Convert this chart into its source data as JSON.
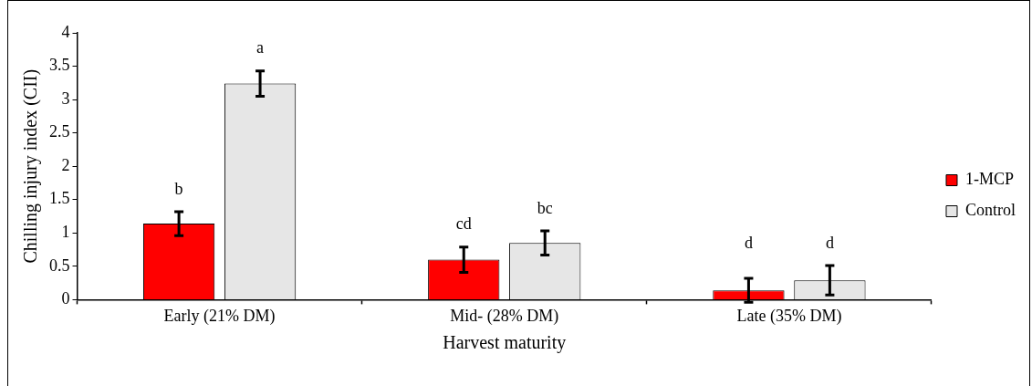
{
  "chart_data": {
    "type": "bar",
    "xlabel": "Harvest maturity",
    "ylabel": "Chilling injury index (CII)",
    "categories": [
      "Early (21% DM)",
      "Mid- (28% DM)",
      "Late (35% DM)"
    ],
    "series": [
      {
        "name": "1-MCP",
        "color": "#ff0000",
        "values": [
          1.14,
          0.6,
          0.14
        ],
        "errors": [
          0.18,
          0.19,
          0.18
        ]
      },
      {
        "name": "Control",
        "color": "#e6e6e6",
        "values": [
          3.24,
          0.85,
          0.29
        ],
        "errors": [
          0.19,
          0.18,
          0.22
        ]
      }
    ],
    "ylim": [
      0,
      4
    ],
    "yticks": [
      0,
      0.5,
      1,
      1.5,
      2,
      2.5,
      3,
      3.5,
      4
    ],
    "grid": false,
    "legend": "right",
    "annotations": [
      "b",
      "a",
      "cd",
      "bc",
      "d",
      "d"
    ]
  }
}
